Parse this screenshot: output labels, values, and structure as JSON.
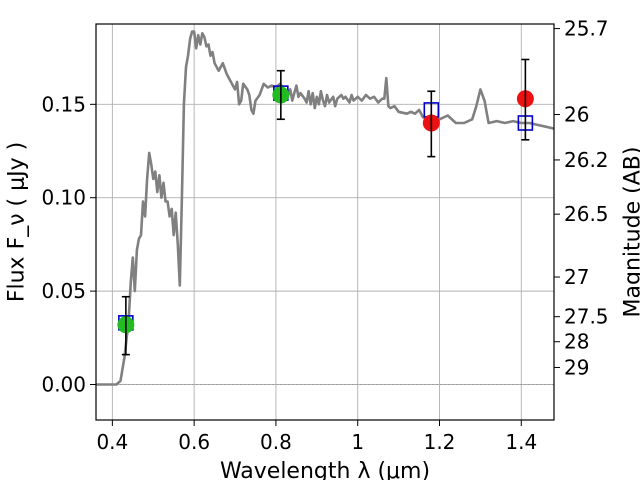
{
  "chart_data": {
    "type": "line",
    "xlabel": "Wavelength  λ (μm)",
    "ylabel": "Flux  F_ν  ( μJy )",
    "y2label": "Magnitude (AB)",
    "xlim": [
      0.36,
      1.48
    ],
    "ylim": [
      -0.019,
      0.193
    ],
    "grid": true,
    "x_ticks": [
      {
        "v": 0.4,
        "label": "0.4"
      },
      {
        "v": 0.6,
        "label": "0.6"
      },
      {
        "v": 0.8,
        "label": "0.8"
      },
      {
        "v": 1.0,
        "label": "1"
      },
      {
        "v": 1.2,
        "label": "1.2"
      },
      {
        "v": 1.4,
        "label": "1.4"
      }
    ],
    "y_ticks": [
      {
        "v": 0.0,
        "label": "0.00"
      },
      {
        "v": 0.05,
        "label": "0.05"
      },
      {
        "v": 0.1,
        "label": "0.10"
      },
      {
        "v": 0.15,
        "label": "0.15"
      }
    ],
    "mag_ticks": [
      {
        "mag": 25.7,
        "label": "25.7"
      },
      {
        "mag": 26.0,
        "label": "26"
      },
      {
        "mag": 26.2,
        "label": "26.2"
      },
      {
        "mag": 26.5,
        "label": "26.5"
      },
      {
        "mag": 27.0,
        "label": "27"
      },
      {
        "mag": 27.5,
        "label": "27.5"
      },
      {
        "mag": 28.0,
        "label": "28"
      },
      {
        "mag": 29.0,
        "label": "29"
      }
    ],
    "series": [
      {
        "kind": "line",
        "color": "#808080",
        "points": [
          [
            0.36,
            0.0
          ],
          [
            0.41,
            0.0
          ],
          [
            0.42,
            0.002
          ],
          [
            0.43,
            0.015
          ],
          [
            0.44,
            0.035
          ],
          [
            0.445,
            0.055
          ],
          [
            0.45,
            0.068
          ],
          [
            0.455,
            0.05
          ],
          [
            0.46,
            0.072
          ],
          [
            0.465,
            0.078
          ],
          [
            0.47,
            0.08
          ],
          [
            0.475,
            0.098
          ],
          [
            0.48,
            0.09
          ],
          [
            0.485,
            0.11
          ],
          [
            0.49,
            0.124
          ],
          [
            0.495,
            0.118
          ],
          [
            0.5,
            0.11
          ],
          [
            0.505,
            0.114
          ],
          [
            0.51,
            0.103
          ],
          [
            0.515,
            0.112
          ],
          [
            0.52,
            0.1
          ],
          [
            0.525,
            0.108
          ],
          [
            0.53,
            0.098
          ],
          [
            0.535,
            0.098
          ],
          [
            0.54,
            0.09
          ],
          [
            0.545,
            0.094
          ],
          [
            0.55,
            0.08
          ],
          [
            0.555,
            0.092
          ],
          [
            0.56,
            0.075
          ],
          [
            0.565,
            0.053
          ],
          [
            0.57,
            0.1
          ],
          [
            0.575,
            0.15
          ],
          [
            0.58,
            0.17
          ],
          [
            0.585,
            0.176
          ],
          [
            0.59,
            0.185
          ],
          [
            0.595,
            0.189
          ],
          [
            0.6,
            0.189
          ],
          [
            0.605,
            0.18
          ],
          [
            0.61,
            0.187
          ],
          [
            0.615,
            0.182
          ],
          [
            0.62,
            0.188
          ],
          [
            0.625,
            0.186
          ],
          [
            0.63,
            0.181
          ],
          [
            0.635,
            0.182
          ],
          [
            0.64,
            0.176
          ],
          [
            0.645,
            0.178
          ],
          [
            0.65,
            0.172
          ],
          [
            0.66,
            0.168
          ],
          [
            0.67,
            0.172
          ],
          [
            0.68,
            0.166
          ],
          [
            0.69,
            0.162
          ],
          [
            0.7,
            0.158
          ],
          [
            0.705,
            0.162
          ],
          [
            0.71,
            0.15
          ],
          [
            0.715,
            0.152
          ],
          [
            0.72,
            0.161
          ],
          [
            0.73,
            0.158
          ],
          [
            0.735,
            0.155
          ],
          [
            0.74,
            0.147
          ],
          [
            0.745,
            0.145
          ],
          [
            0.75,
            0.152
          ],
          [
            0.76,
            0.155
          ],
          [
            0.77,
            0.161
          ],
          [
            0.78,
            0.159
          ],
          [
            0.79,
            0.16
          ],
          [
            0.8,
            0.159
          ],
          [
            0.81,
            0.161
          ],
          [
            0.82,
            0.158
          ],
          [
            0.83,
            0.155
          ],
          [
            0.835,
            0.158
          ],
          [
            0.84,
            0.152
          ],
          [
            0.845,
            0.156
          ],
          [
            0.85,
            0.16
          ],
          [
            0.855,
            0.154
          ],
          [
            0.86,
            0.156
          ],
          [
            0.87,
            0.153
          ],
          [
            0.875,
            0.151
          ],
          [
            0.88,
            0.157
          ],
          [
            0.885,
            0.15
          ],
          [
            0.89,
            0.156
          ],
          [
            0.895,
            0.148
          ],
          [
            0.9,
            0.154
          ],
          [
            0.905,
            0.15
          ],
          [
            0.91,
            0.157
          ],
          [
            0.915,
            0.152
          ],
          [
            0.92,
            0.149
          ],
          [
            0.925,
            0.155
          ],
          [
            0.93,
            0.151
          ],
          [
            0.94,
            0.154
          ],
          [
            0.945,
            0.149
          ],
          [
            0.95,
            0.153
          ],
          [
            0.96,
            0.155
          ],
          [
            0.965,
            0.153
          ],
          [
            0.97,
            0.154
          ],
          [
            0.98,
            0.151
          ],
          [
            0.985,
            0.155
          ],
          [
            0.99,
            0.152
          ],
          [
            1.0,
            0.154
          ],
          [
            1.01,
            0.152
          ],
          [
            1.02,
            0.155
          ],
          [
            1.03,
            0.153
          ],
          [
            1.04,
            0.154
          ],
          [
            1.05,
            0.151
          ],
          [
            1.06,
            0.153
          ],
          [
            1.065,
            0.153
          ],
          [
            1.07,
            0.164
          ],
          [
            1.075,
            0.149
          ],
          [
            1.08,
            0.148
          ],
          [
            1.09,
            0.149
          ],
          [
            1.1,
            0.146
          ],
          [
            1.12,
            0.145
          ],
          [
            1.13,
            0.146
          ],
          [
            1.14,
            0.145
          ],
          [
            1.15,
            0.147
          ],
          [
            1.16,
            0.143
          ],
          [
            1.18,
            0.143
          ],
          [
            1.2,
            0.142
          ],
          [
            1.22,
            0.144
          ],
          [
            1.24,
            0.14
          ],
          [
            1.26,
            0.14
          ],
          [
            1.28,
            0.142
          ],
          [
            1.29,
            0.149
          ],
          [
            1.3,
            0.158
          ],
          [
            1.31,
            0.152
          ],
          [
            1.32,
            0.14
          ],
          [
            1.34,
            0.141
          ],
          [
            1.36,
            0.14
          ],
          [
            1.38,
            0.141
          ],
          [
            1.4,
            0.14
          ],
          [
            1.42,
            0.14
          ],
          [
            1.44,
            0.139
          ],
          [
            1.46,
            0.138
          ],
          [
            1.48,
            0.137
          ]
        ]
      },
      {
        "kind": "squares",
        "color": "#0000cc",
        "points": [
          [
            0.433,
            0.033
          ],
          [
            0.812,
            0.156
          ],
          [
            1.18,
            0.147
          ],
          [
            1.41,
            0.14
          ]
        ]
      },
      {
        "kind": "points",
        "color": "#22bb22",
        "points": [
          {
            "x": 0.433,
            "y": 0.032,
            "err": [
              0.016,
              0.047
            ]
          },
          {
            "x": 0.812,
            "y": 0.155,
            "err": [
              0.142,
              0.168
            ]
          }
        ]
      },
      {
        "kind": "points",
        "color": "#ee1111",
        "points": [
          {
            "x": 1.18,
            "y": 0.14,
            "err": [
              0.122,
              0.157
            ]
          },
          {
            "x": 1.41,
            "y": 0.153,
            "err": [
              0.131,
              0.174
            ]
          }
        ]
      }
    ]
  }
}
